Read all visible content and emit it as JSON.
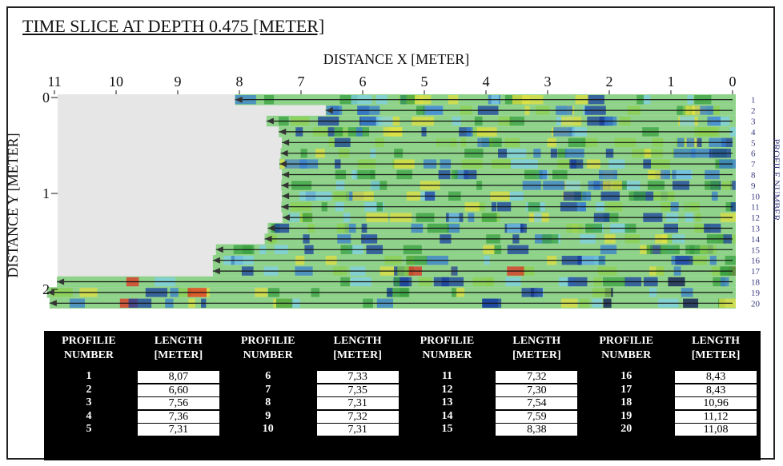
{
  "title": "TIME SLICE AT DEPTH 0.475 [METER]",
  "x_axis": {
    "label": "DISTANCE X [METER]",
    "ticks": [
      "11",
      "10",
      "9",
      "8",
      "7",
      "6",
      "5",
      "4",
      "3",
      "2",
      "1",
      "0"
    ]
  },
  "y_axis": {
    "label": "DISTANCE Y [METER]",
    "ticks": [
      "0",
      "1",
      "2"
    ]
  },
  "profile_axis": {
    "label": "PROFILE NUMBER",
    "ticks": [
      "1",
      "2",
      "3",
      "4",
      "5",
      "6",
      "7",
      "8",
      "9",
      "10",
      "11",
      "12",
      "13",
      "14",
      "15",
      "16",
      "17",
      "18",
      "19",
      "20"
    ]
  },
  "table": {
    "header": [
      "PROFILIE NUMBER",
      "LENGTH [METER]"
    ],
    "rows": [
      [
        "1",
        "8,07"
      ],
      [
        "2",
        "6,60"
      ],
      [
        "3",
        "7,56"
      ],
      [
        "4",
        "7,36"
      ],
      [
        "5",
        "7,31"
      ],
      [
        "6",
        "7,33"
      ],
      [
        "7",
        "7,35"
      ],
      [
        "8",
        "7,31"
      ],
      [
        "9",
        "7,32"
      ],
      [
        "10",
        "7,31"
      ],
      [
        "11",
        "7,32"
      ],
      [
        "12",
        "7,30"
      ],
      [
        "13",
        "7,54"
      ],
      [
        "14",
        "7,59"
      ],
      [
        "15",
        "8,38"
      ],
      [
        "16",
        "8,43"
      ],
      [
        "17",
        "8,43"
      ],
      [
        "18",
        "10,96"
      ],
      [
        "19",
        "11,12"
      ],
      [
        "20",
        "11,08"
      ]
    ]
  }
}
